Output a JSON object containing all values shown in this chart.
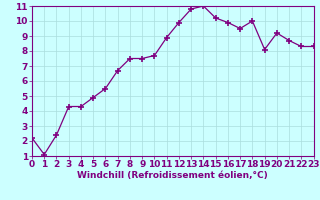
{
  "x": [
    0,
    1,
    2,
    3,
    4,
    5,
    6,
    7,
    8,
    9,
    10,
    11,
    12,
    13,
    14,
    15,
    16,
    17,
    18,
    19,
    20,
    21,
    22,
    23
  ],
  "y": [
    2.2,
    1.1,
    2.4,
    4.3,
    4.3,
    4.9,
    5.5,
    6.7,
    7.5,
    7.5,
    7.7,
    8.9,
    9.9,
    10.8,
    11.0,
    10.2,
    9.9,
    9.5,
    10.0,
    8.1,
    9.2,
    8.7,
    8.3,
    8.3
  ],
  "xlabel": "Windchill (Refroidissement éolien,°C)",
  "line_color": "#800080",
  "marker_color": "#800080",
  "bg_color": "#ccffff",
  "grid_color": "#aadddd",
  "xlim": [
    0,
    23
  ],
  "ylim": [
    1,
    11
  ],
  "xticks": [
    0,
    1,
    2,
    3,
    4,
    5,
    6,
    7,
    8,
    9,
    10,
    11,
    12,
    13,
    14,
    15,
    16,
    17,
    18,
    19,
    20,
    21,
    22,
    23
  ],
  "yticks": [
    1,
    2,
    3,
    4,
    5,
    6,
    7,
    8,
    9,
    10,
    11
  ],
  "tick_fontsize": 6.5,
  "xlabel_fontsize": 6.5
}
